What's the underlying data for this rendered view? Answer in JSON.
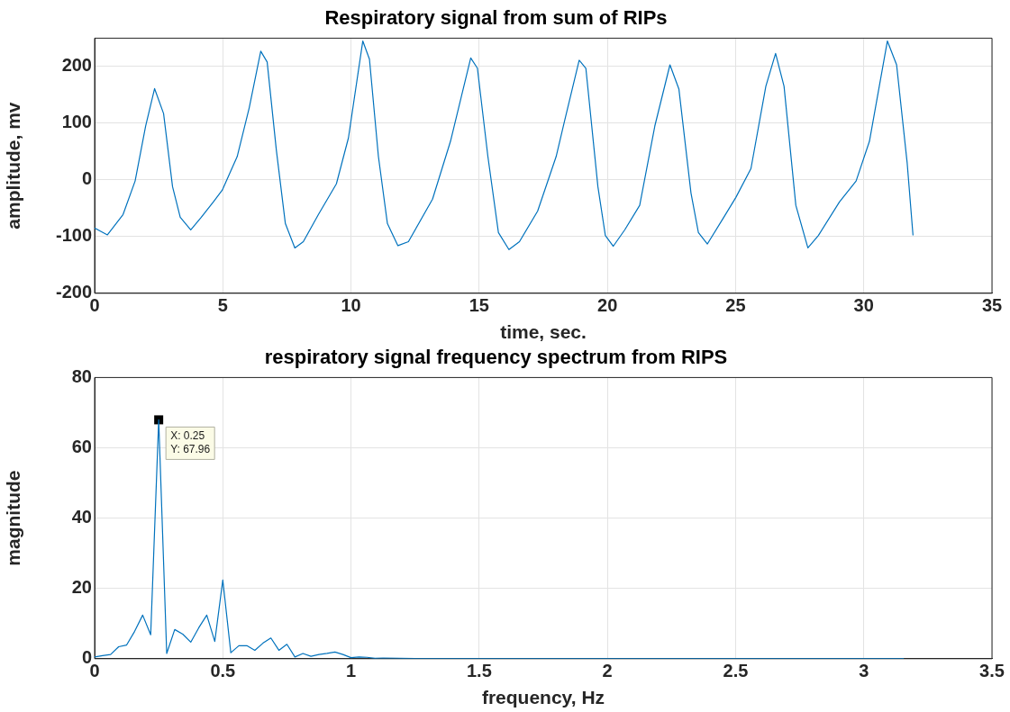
{
  "chart_data": [
    {
      "type": "line",
      "title": "Respiratory signal from sum of RIPs",
      "xlabel": "time, sec.",
      "ylabel": "amplitude, mv",
      "xlim": [
        0,
        35
      ],
      "ylim": [
        -200,
        250
      ],
      "xticks": [
        0,
        5,
        10,
        15,
        20,
        25,
        30,
        35
      ],
      "yticks": [
        -200,
        -100,
        0,
        100,
        200
      ],
      "grid": true,
      "series": [
        {
          "color": "#0072bd",
          "x": [
            0,
            0.5,
            1.11,
            1.58,
            1.99,
            2.34,
            2.69,
            3.04,
            3.34,
            3.75,
            4.16,
            4.63,
            4.98,
            5.56,
            6.03,
            6.48,
            6.73,
            7.09,
            7.44,
            7.81,
            8.14,
            8.73,
            9.43,
            9.9,
            10.46,
            10.72,
            11.07,
            11.42,
            11.83,
            12.24,
            13.18,
            13.88,
            14.67,
            14.93,
            15.34,
            15.75,
            16.16,
            16.57,
            17.28,
            18.0,
            18.34,
            18.9,
            19.16,
            19.63,
            19.92,
            20.23,
            20.68,
            21.26,
            21.85,
            22.44,
            22.79,
            23.26,
            23.55,
            23.9,
            24.54,
            25.01,
            25.6,
            26.18,
            26.56,
            26.89,
            27.35,
            27.82,
            28.23,
            29.05,
            29.7,
            30.22,
            30.92,
            31.28,
            31.69,
            31.92
          ],
          "values": [
            -85,
            -97,
            -61,
            -2,
            95,
            161,
            117,
            -12,
            -66,
            -88,
            -66,
            -39,
            -18,
            41,
            127,
            227,
            208,
            52,
            -77,
            -120,
            -109,
            -61,
            -7,
            74,
            245,
            213,
            41,
            -77,
            -116,
            -109,
            -34,
            68,
            215,
            197,
            41,
            -93,
            -123,
            -109,
            -55,
            41,
            106,
            211,
            197,
            -12,
            -98,
            -117,
            -88,
            -45,
            95,
            203,
            160,
            -23,
            -93,
            -113,
            -66,
            -31,
            20,
            165,
            223,
            165,
            -45,
            -120,
            -98,
            -39,
            -2,
            68,
            245,
            203,
            31,
            -98
          ]
        }
      ]
    },
    {
      "type": "line",
      "title": "respiratory signal frequency spectrum from RIPS",
      "xlabel": "frequency, Hz",
      "ylabel": "magnitude",
      "xlim": [
        0,
        3.5
      ],
      "ylim": [
        0,
        80
      ],
      "xticks": [
        0,
        0.5,
        1,
        1.5,
        2,
        2.5,
        3,
        3.5
      ],
      "yticks": [
        0,
        20,
        40,
        60,
        80
      ],
      "grid": true,
      "annotations": [
        {
          "text": "X: 0.25\nY: 67.96",
          "x": 0.25,
          "y": 67.96
        }
      ],
      "series": [
        {
          "color": "#0072bd",
          "x": [
            0,
            0.03125,
            0.0625,
            0.09375,
            0.125,
            0.15625,
            0.1875,
            0.21875,
            0.25,
            0.28125,
            0.3125,
            0.34375,
            0.375,
            0.40625,
            0.4375,
            0.46875,
            0.5,
            0.53125,
            0.5625,
            0.59375,
            0.625,
            0.65625,
            0.6875,
            0.71875,
            0.75,
            0.78125,
            0.8125,
            0.84375,
            0.875,
            0.90625,
            0.9375,
            0.96875,
            1,
            1.03125,
            1.0625,
            1.09375,
            1.125,
            1.25,
            1.5,
            2,
            2.5,
            3,
            3.15625
          ],
          "values": [
            0.5,
            0.9,
            1.2,
            3.4,
            3.9,
            7.8,
            12.4,
            6.8,
            67.96,
            1.5,
            8.3,
            7.0,
            4.7,
            8.8,
            12.4,
            4.9,
            22.4,
            1.7,
            3.7,
            3.7,
            2.4,
            4.4,
            5.9,
            2.4,
            4.1,
            0.5,
            1.5,
            0.7,
            1.2,
            1.5,
            1.9,
            1.2,
            0.3,
            0.5,
            0.4,
            0.1,
            0.2,
            0.05,
            0.05,
            0.03,
            0.02,
            0.02,
            0.02
          ]
        }
      ]
    }
  ]
}
